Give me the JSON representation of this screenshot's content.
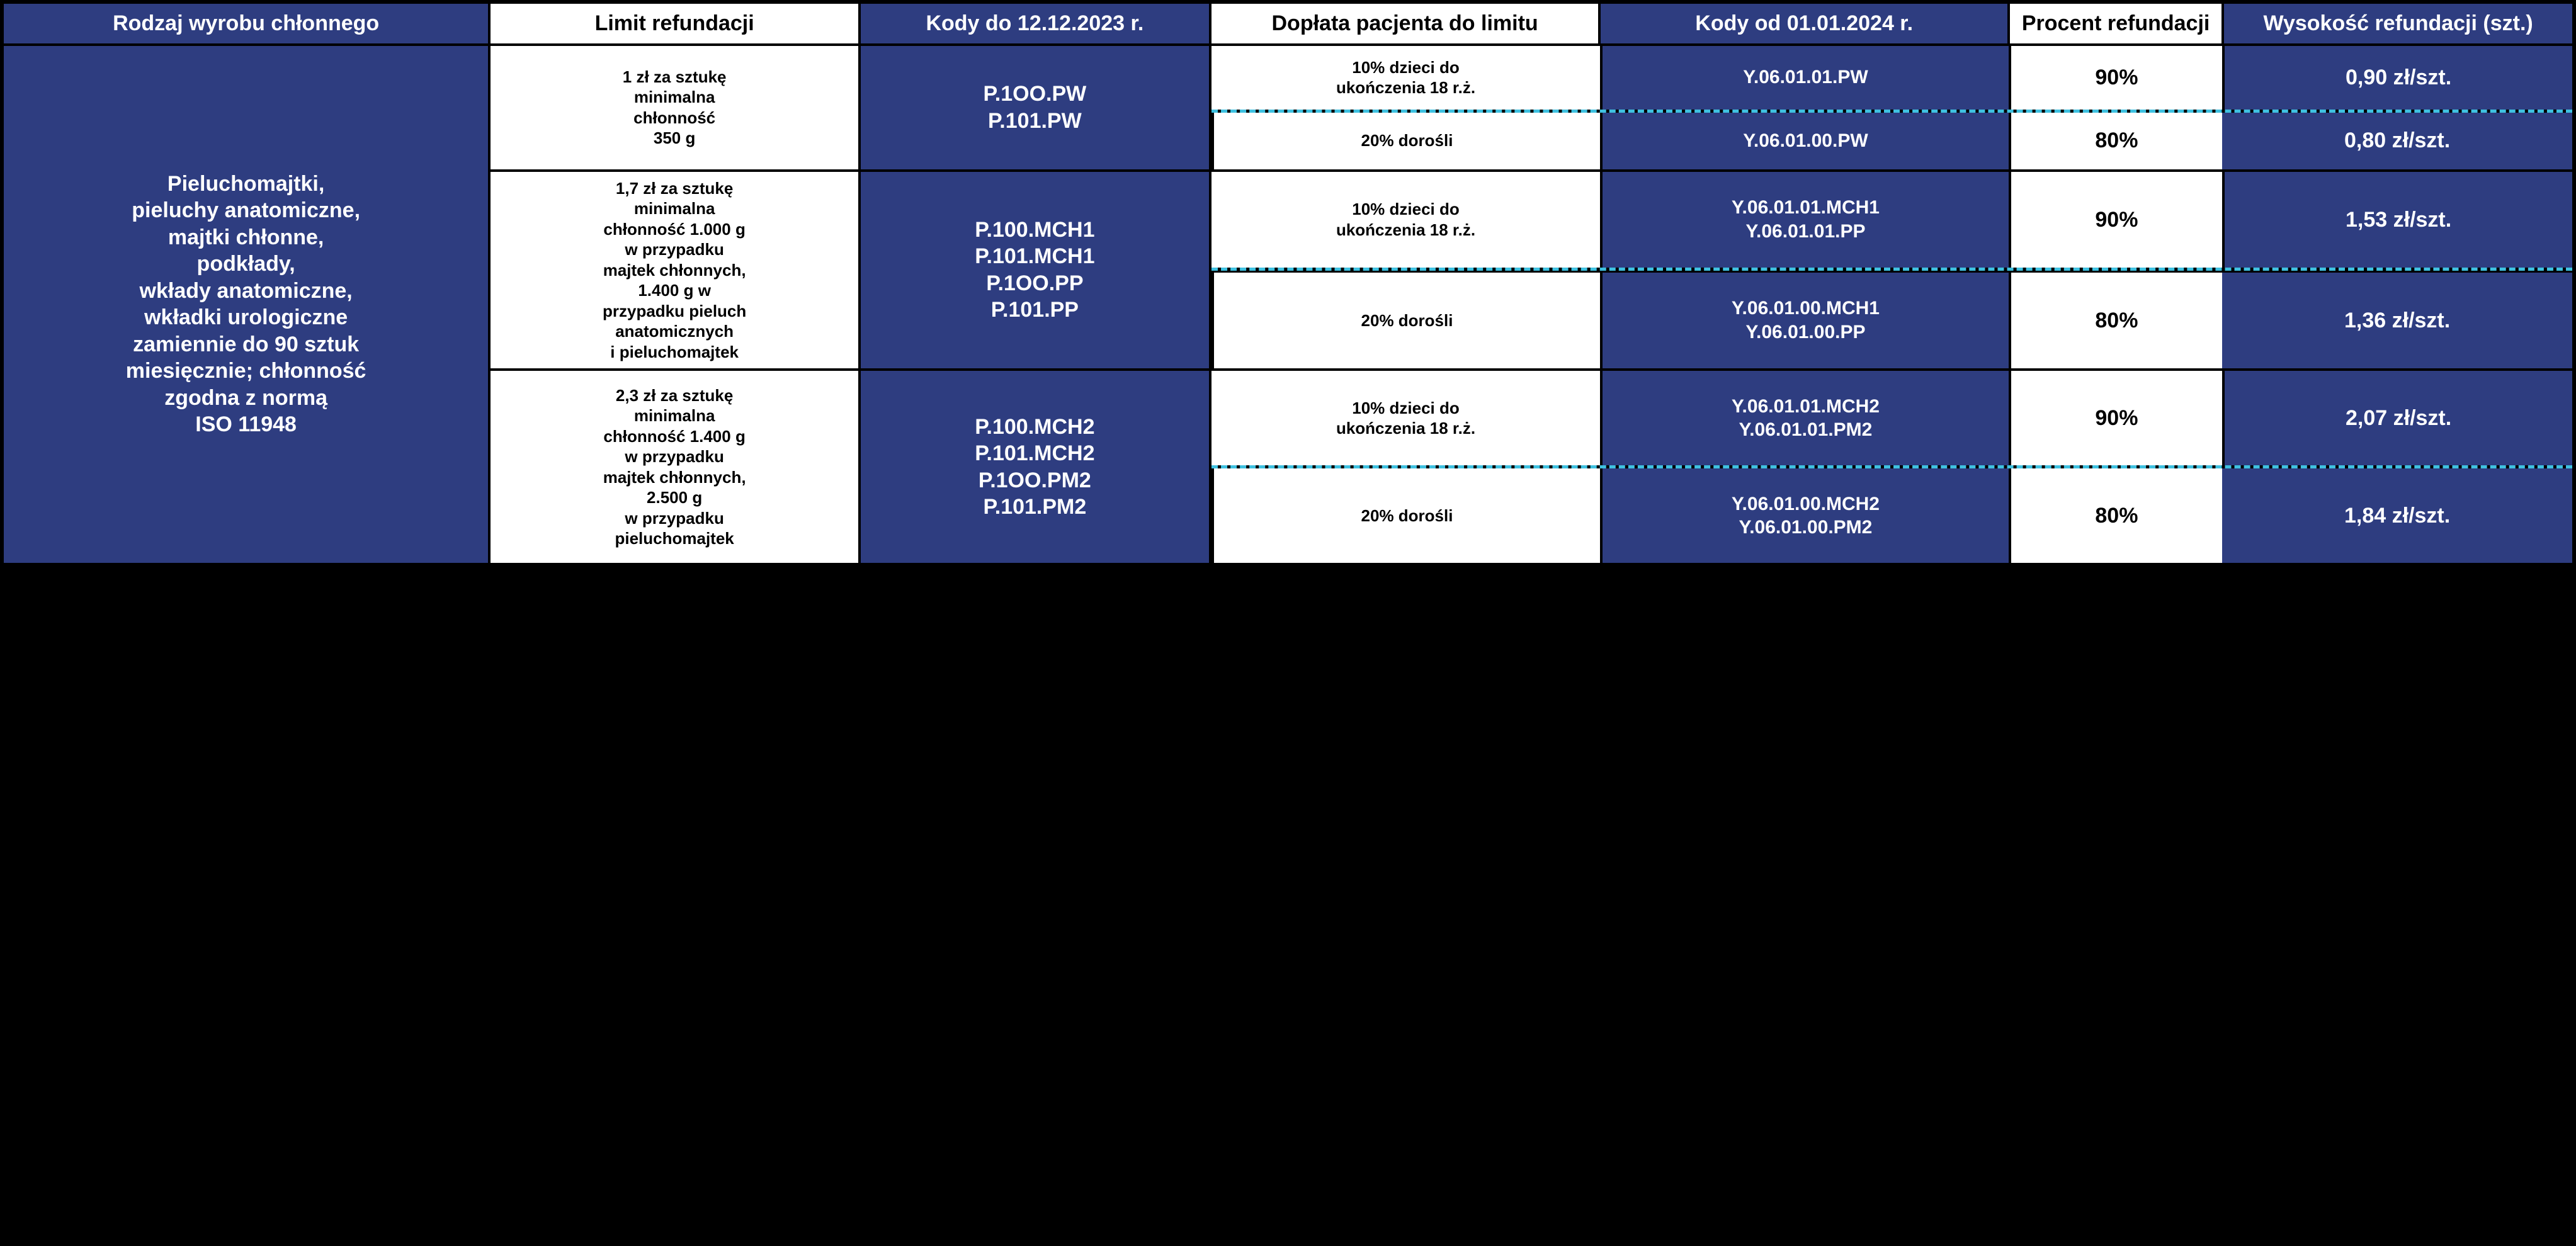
{
  "colors": {
    "blue": "#2e3d80",
    "white": "#ffffff",
    "dash": "#3fc1e0",
    "border": "#000000"
  },
  "header": {
    "col1": "Rodzaj wyrobu chłonnego",
    "col2": "Limit refundacji",
    "col3": "Kody do 12.12.2023 r.",
    "col4": "Dopłata pacjenta do limitu",
    "col5": "Kody od 01.01.2024 r.",
    "col6": "Procent refundacji",
    "col7": "Wysokość refundacji (szt.)"
  },
  "productType": "Pieluchomajtki,\npieluchy anatomiczne,\nmajtki chłonne,\npodkłady,\nwkłady anatomiczne,\nwkładki urologiczne\nzamiennie do 90 sztuk\nmiesięcznie; chłonność\nzgodna z normą\nISO 11948",
  "group1": {
    "limit": "1 zł za sztukę\nminimalna\nchłonność\n350 g",
    "codesOld": "P.1OO.PW\nP.101.PW",
    "rowA": {
      "doplata": "10% dzieci do\nukończenia 18 r.ż.",
      "codesNew": "Y.06.01.01.PW",
      "percent": "90%",
      "amount": "0,90 zł/szt."
    },
    "rowB": {
      "doplata": "20% dorośli",
      "codesNew": "Y.06.01.00.PW",
      "percent": "80%",
      "amount": "0,80 zł/szt."
    }
  },
  "group2": {
    "limit": "1,7 zł za sztukę\nminimalna\nchłonność 1.000 g\nw przypadku\nmajtek chłonnych,\n1.400 g w\nprzypadku pieluch\nanatomicznych\ni pieluchomajtek",
    "codesOld": "P.100.MCH1\nP.101.MCH1\nP.1OO.PP\nP.101.PP",
    "rowA": {
      "doplata": "10% dzieci do\nukończenia 18 r.ż.",
      "codesNew": "Y.06.01.01.MCH1\nY.06.01.01.PP",
      "percent": "90%",
      "amount": "1,53 zł/szt."
    },
    "rowB": {
      "doplata": "20% dorośli",
      "codesNew": "Y.06.01.00.MCH1\nY.06.01.00.PP",
      "percent": "80%",
      "amount": "1,36 zł/szt."
    }
  },
  "group3": {
    "limit": "2,3 zł za sztukę\nminimalna\nchłonność 1.400 g\nw przypadku\nmajtek chłonnych,\n2.500 g\nw przypadku\npieluchomajtek",
    "codesOld": "P.100.MCH2\nP.101.MCH2\nP.1OO.PM2\nP.101.PM2",
    "rowA": {
      "doplata": "10% dzieci do\nukończenia 18 r.ż.",
      "codesNew": "Y.06.01.01.MCH2\nY.06.01.01.PM2",
      "percent": "90%",
      "amount": "2,07 zł/szt."
    },
    "rowB": {
      "doplata": "20% dorośli",
      "codesNew": "Y.06.01.00.MCH2\nY.06.01.00.PM2",
      "percent": "80%",
      "amount": "1,84 zł/szt."
    }
  }
}
